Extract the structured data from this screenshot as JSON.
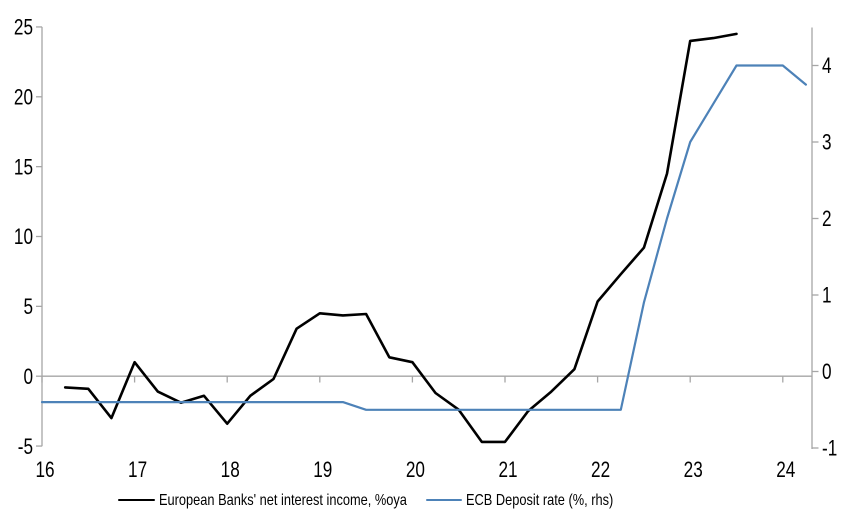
{
  "chart_data": {
    "type": "line",
    "title": "",
    "x_axis": {
      "ticks": [
        16,
        17,
        18,
        19,
        20,
        21,
        22,
        23,
        24
      ],
      "range": [
        16,
        24.32
      ],
      "grid": false
    },
    "left_axis": {
      "ticks": [
        25,
        20,
        15,
        10,
        5,
        0,
        -5
      ],
      "range": [
        -5,
        25
      ]
    },
    "right_axis": {
      "ticks": [
        4,
        3,
        2,
        1,
        0,
        -1
      ],
      "range": [
        -1,
        4.45
      ]
    },
    "legend_position": "bottom",
    "series": [
      {
        "name": "European Banks' net interest income, %oya",
        "axis": "left",
        "color": "#000000",
        "width": 2.6,
        "x": [
          16.25,
          16.5,
          16.75,
          17,
          17.25,
          17.5,
          17.75,
          18,
          18.25,
          18.5,
          18.75,
          19,
          19.25,
          19.5,
          19.75,
          20,
          20.25,
          20.5,
          20.75,
          21,
          21.25,
          21.5,
          21.75,
          22,
          22.25,
          22.5,
          22.75,
          23,
          23.25,
          23.5
        ],
        "y": [
          -0.8,
          -0.9,
          -3.0,
          1.0,
          -1.1,
          -1.9,
          -1.4,
          -3.4,
          -1.4,
          -0.2,
          3.4,
          4.5,
          4.35,
          4.45,
          1.35,
          1.0,
          -1.2,
          -2.4,
          -4.7,
          -4.7,
          -2.5,
          -1.1,
          0.5,
          5.35,
          7.3,
          9.2,
          14.5,
          24.0,
          24.2,
          24.5
        ]
      },
      {
        "name": "ECB Deposit rate (%, rhs)",
        "axis": "right",
        "color": "#4d82b8",
        "width": 2.2,
        "x": [
          16,
          16.25,
          16.5,
          16.75,
          17,
          17.25,
          17.5,
          17.75,
          18,
          18.25,
          18.5,
          18.75,
          19,
          19.25,
          19.5,
          19.75,
          20,
          20.25,
          20.5,
          20.75,
          21,
          21.25,
          21.5,
          21.75,
          22,
          22.25,
          22.5,
          22.75,
          23,
          23.25,
          23.5,
          23.75,
          24,
          24.25
        ],
        "y": [
          -0.4,
          -0.4,
          -0.4,
          -0.4,
          -0.4,
          -0.4,
          -0.4,
          -0.4,
          -0.4,
          -0.4,
          -0.4,
          -0.4,
          -0.4,
          -0.4,
          -0.5,
          -0.5,
          -0.5,
          -0.5,
          -0.5,
          -0.5,
          -0.5,
          -0.5,
          -0.5,
          -0.5,
          -0.5,
          -0.5,
          0.9,
          2.0,
          3.0,
          3.5,
          4.0,
          4.0,
          4.0,
          3.75
        ]
      }
    ]
  },
  "colors": {
    "axis_gray": "#a6a6a6",
    "series_black": "#000000",
    "series_blue": "#4d82b8",
    "background": "#ffffff"
  },
  "legend": {
    "item1": "European Banks' net interest income, %oya",
    "item2": "ECB Deposit rate (%, rhs)"
  }
}
